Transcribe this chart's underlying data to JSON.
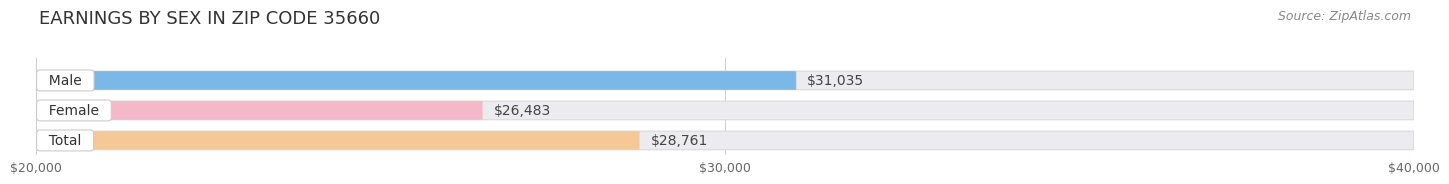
{
  "title": "EARNINGS BY SEX IN ZIP CODE 35660",
  "source": "Source: ZipAtlas.com",
  "categories": [
    "Male",
    "Female",
    "Total"
  ],
  "values": [
    31035,
    26483,
    28761
  ],
  "bar_colors": [
    "#7ab8e8",
    "#f5b8c8",
    "#f5c896"
  ],
  "value_labels": [
    "$31,035",
    "$26,483",
    "$28,761"
  ],
  "xmin": 20000,
  "xmax": 40000,
  "xticks": [
    20000,
    30000,
    40000
  ],
  "xtick_labels": [
    "$20,000",
    "$30,000",
    "$40,000"
  ],
  "bg_color": "#ffffff",
  "bar_track_color": "#ebebf0",
  "bar_track_edge_color": "#d8d8e0",
  "title_fontsize": 13,
  "source_fontsize": 9,
  "label_fontsize": 10,
  "value_fontsize": 10,
  "tick_fontsize": 9
}
